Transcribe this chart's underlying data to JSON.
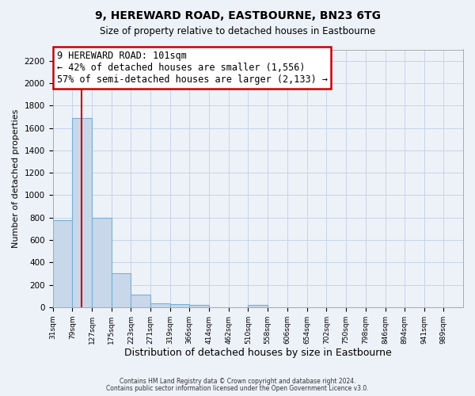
{
  "title": "9, HEREWARD ROAD, EASTBOURNE, BN23 6TG",
  "subtitle": "Size of property relative to detached houses in Eastbourne",
  "xlabel": "Distribution of detached houses by size in Eastbourne",
  "ylabel": "Number of detached properties",
  "footnote1": "Contains HM Land Registry data © Crown copyright and database right 2024.",
  "footnote2": "Contains public sector information licensed under the Open Government Licence v3.0.",
  "bin_labels": [
    "31sqm",
    "79sqm",
    "127sqm",
    "175sqm",
    "223sqm",
    "271sqm",
    "319sqm",
    "366sqm",
    "414sqm",
    "462sqm",
    "510sqm",
    "558sqm",
    "606sqm",
    "654sqm",
    "702sqm",
    "750sqm",
    "798sqm",
    "846sqm",
    "894sqm",
    "941sqm",
    "989sqm"
  ],
  "bar_heights": [
    780,
    1690,
    800,
    300,
    115,
    35,
    30,
    20,
    0,
    0,
    20,
    0,
    0,
    0,
    0,
    0,
    0,
    0,
    0,
    0,
    0
  ],
  "bar_color": "#c8d8ea",
  "bar_edge_color": "#7aafd4",
  "red_line_x": 101,
  "annotation_title": "9 HEREWARD ROAD: 101sqm",
  "annotation_line1": "← 42% of detached houses are smaller (1,556)",
  "annotation_line2": "57% of semi-detached houses are larger (2,133) →",
  "annotation_box_color": "#ffffff",
  "annotation_box_edge": "#cc0000",
  "ylim": [
    0,
    2300
  ],
  "yticks": [
    0,
    200,
    400,
    600,
    800,
    1000,
    1200,
    1400,
    1600,
    1800,
    2000,
    2200
  ],
  "bin_edges": [
    31,
    79,
    127,
    175,
    223,
    271,
    319,
    366,
    414,
    462,
    510,
    558,
    606,
    654,
    702,
    750,
    798,
    846,
    894,
    941,
    989,
    1037
  ],
  "grid_color": "#c8d4e8",
  "bg_color": "#edf2f9"
}
